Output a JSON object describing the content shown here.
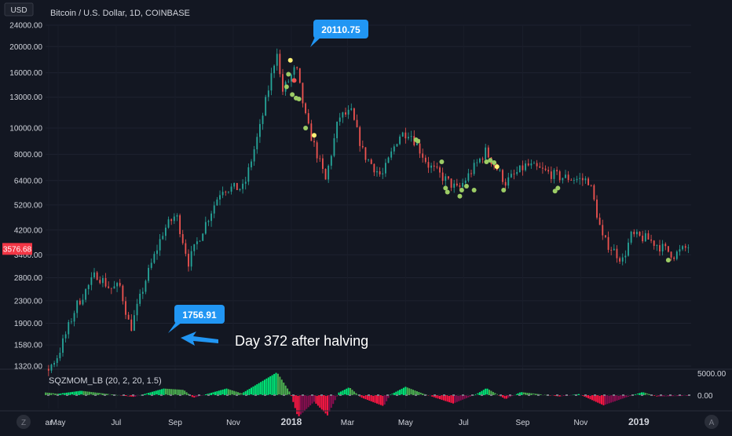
{
  "header": {
    "currency": "USD",
    "symbol_title": "Bitcoin / U.S. Dollar, 1D, COINBASE"
  },
  "price_badge": {
    "value": "3576.68",
    "color": "#f23645"
  },
  "colors": {
    "background": "#131722",
    "up_candle": "#26a69a",
    "down_candle": "#ef5350",
    "callout": "#2196f3",
    "hist_strong_up": "#00e676",
    "hist_weak_up": "#4caf50",
    "hist_strong_down": "#ff1744",
    "hist_weak_down": "#880e4f",
    "dot_green": "#9ccc65",
    "dot_yellow": "#fff176",
    "dot_red": "#ef5350"
  },
  "indicator": {
    "label": "SQZMOM_LB (20, 2, 20, 1.5)",
    "axis_ticks": [
      "5000.00",
      "0.00"
    ]
  },
  "annotations": {
    "callout_high": "20110.75",
    "callout_low": "1756.91",
    "note": "Day 372 after halving"
  },
  "bottom_bar": {
    "left_icon": "Z",
    "right_icon": "A"
  },
  "chart_data": {
    "type": "candlestick",
    "y_scale": "log",
    "y_ticks": [
      24000,
      20000,
      16000,
      13000,
      10000,
      8000,
      6400,
      5200,
      4200,
      3400,
      2800,
      2300,
      1900,
      1580,
      1320
    ],
    "y_tick_labels": [
      "24000.00",
      "20000.00",
      "16000.00",
      "13000.00",
      "10000.00",
      "8000.00",
      "6400.00",
      "5200.00",
      "4200.00",
      "3400.00",
      "2800.00",
      "2300.00",
      "1900.00",
      "1580.00",
      "1320.00"
    ],
    "x_tick_labels": [
      "ar",
      "May",
      "Jul",
      "Sep",
      "Nov",
      "2018",
      "Mar",
      "May",
      "Jul",
      "Sep",
      "Nov",
      "2019"
    ],
    "x_tick_bold": [
      "2018",
      "2019"
    ],
    "x_range": [
      "2017-03-01",
      "2019-02-25"
    ],
    "close_path": [
      [
        "2017-03-01",
        1200
      ],
      [
        "2017-04-15",
        1200
      ],
      [
        "2017-05-01",
        1450
      ],
      [
        "2017-05-20",
        2200
      ],
      [
        "2017-06-10",
        2900
      ],
      [
        "2017-06-25",
        2550
      ],
      [
        "2017-07-05",
        2600
      ],
      [
        "2017-07-16",
        1800
      ],
      [
        "2017-08-01",
        2750
      ],
      [
        "2017-08-20",
        4200
      ],
      [
        "2017-09-02",
        4800
      ],
      [
        "2017-09-15",
        3200
      ],
      [
        "2017-10-01",
        4300
      ],
      [
        "2017-10-20",
        6000
      ],
      [
        "2017-11-12",
        6000
      ],
      [
        "2017-11-29",
        10000
      ],
      [
        "2017-12-17",
        19500
      ],
      [
        "2017-12-22",
        13500
      ],
      [
        "2018-01-06",
        16800
      ],
      [
        "2018-01-17",
        10500
      ],
      [
        "2018-02-06",
        6400
      ],
      [
        "2018-02-20",
        11000
      ],
      [
        "2018-03-05",
        11400
      ],
      [
        "2018-03-18",
        8000
      ],
      [
        "2018-04-06",
        6600
      ],
      [
        "2018-04-24",
        9400
      ],
      [
        "2018-05-05",
        9700
      ],
      [
        "2018-05-25",
        7300
      ],
      [
        "2018-06-25",
        5900
      ],
      [
        "2018-07-24",
        8200
      ],
      [
        "2018-08-14",
        6300
      ],
      [
        "2018-09-05",
        7300
      ],
      [
        "2018-10-10",
        6600
      ],
      [
        "2018-11-10",
        6400
      ],
      [
        "2018-11-24",
        3900
      ],
      [
        "2018-12-15",
        3250
      ],
      [
        "2018-12-24",
        4000
      ],
      [
        "2019-01-10",
        3900
      ],
      [
        "2019-02-07",
        3400
      ],
      [
        "2019-02-25",
        3700
      ]
    ],
    "squeeze_dots": [
      {
        "date": "2017-12-31",
        "price": 17800,
        "color": "yellow"
      },
      {
        "date": "2018-01-04",
        "price": 15000,
        "color": "red"
      },
      {
        "date": "2017-12-27",
        "price": 14200,
        "color": "green"
      },
      {
        "date": "2017-12-29",
        "price": 15800,
        "color": "green"
      },
      {
        "date": "2018-01-02",
        "price": 13300,
        "color": "green"
      },
      {
        "date": "2018-01-06",
        "price": 12900,
        "color": "green"
      },
      {
        "date": "2018-01-09",
        "price": 12800,
        "color": "green"
      },
      {
        "date": "2018-01-16",
        "price": 10000,
        "color": "green"
      },
      {
        "date": "2018-01-25",
        "price": 9400,
        "color": "yellow"
      },
      {
        "date": "2018-05-12",
        "price": 9050,
        "color": "green"
      },
      {
        "date": "2018-05-14",
        "price": 8950,
        "color": "green"
      },
      {
        "date": "2018-06-08",
        "price": 7500,
        "color": "green"
      },
      {
        "date": "2018-06-12",
        "price": 6000,
        "color": "green"
      },
      {
        "date": "2018-06-14",
        "price": 5800,
        "color": "green"
      },
      {
        "date": "2018-06-27",
        "price": 5600,
        "color": "green"
      },
      {
        "date": "2018-06-29",
        "price": 5900,
        "color": "green"
      },
      {
        "date": "2018-07-04",
        "price": 6100,
        "color": "green"
      },
      {
        "date": "2018-07-12",
        "price": 5900,
        "color": "green"
      },
      {
        "date": "2018-07-25",
        "price": 7500,
        "color": "green"
      },
      {
        "date": "2018-07-29",
        "price": 7600,
        "color": "green"
      },
      {
        "date": "2018-08-02",
        "price": 7450,
        "color": "green"
      },
      {
        "date": "2018-08-05",
        "price": 7200,
        "color": "yellow"
      },
      {
        "date": "2018-08-12",
        "price": 5900,
        "color": "green"
      },
      {
        "date": "2018-10-05",
        "price": 5850,
        "color": "green"
      },
      {
        "date": "2018-10-08",
        "price": 6000,
        "color": "green"
      },
      {
        "date": "2019-02-01",
        "price": 3250,
        "color": "green"
      }
    ],
    "momentum_path": [
      [
        "2017-03-01",
        200
      ],
      [
        "2017-04-10",
        800
      ],
      [
        "2017-05-01",
        300
      ],
      [
        "2017-05-25",
        1000
      ],
      [
        "2017-06-25",
        200
      ],
      [
        "2017-07-20",
        -400
      ],
      [
        "2017-08-20",
        1500
      ],
      [
        "2017-09-10",
        1200
      ],
      [
        "2017-09-20",
        -600
      ],
      [
        "2017-10-25",
        1500
      ],
      [
        "2017-11-10",
        400
      ],
      [
        "2017-12-17",
        5200
      ],
      [
        "2017-12-31",
        500
      ],
      [
        "2018-01-08",
        -5000
      ],
      [
        "2018-01-25",
        -1500
      ],
      [
        "2018-02-08",
        -4600
      ],
      [
        "2018-02-20",
        600
      ],
      [
        "2018-03-03",
        1800
      ],
      [
        "2018-03-15",
        -500
      ],
      [
        "2018-04-08",
        -2500
      ],
      [
        "2018-04-15",
        100
      ],
      [
        "2018-05-01",
        1900
      ],
      [
        "2018-05-20",
        300
      ],
      [
        "2018-06-20",
        -1900
      ],
      [
        "2018-07-15",
        300
      ],
      [
        "2018-07-25",
        1600
      ],
      [
        "2018-08-14",
        -900
      ],
      [
        "2018-08-30",
        700
      ],
      [
        "2018-10-10",
        -300
      ],
      [
        "2018-10-30",
        250
      ],
      [
        "2018-11-25",
        -2300
      ],
      [
        "2018-12-20",
        -400
      ],
      [
        "2019-01-05",
        700
      ],
      [
        "2019-01-20",
        -300
      ],
      [
        "2019-02-25",
        -150
      ]
    ],
    "high_callout_point": [
      "2017-12-17",
      20110.75
    ],
    "low_callout_point": [
      "2017-07-16",
      1756.91
    ]
  }
}
